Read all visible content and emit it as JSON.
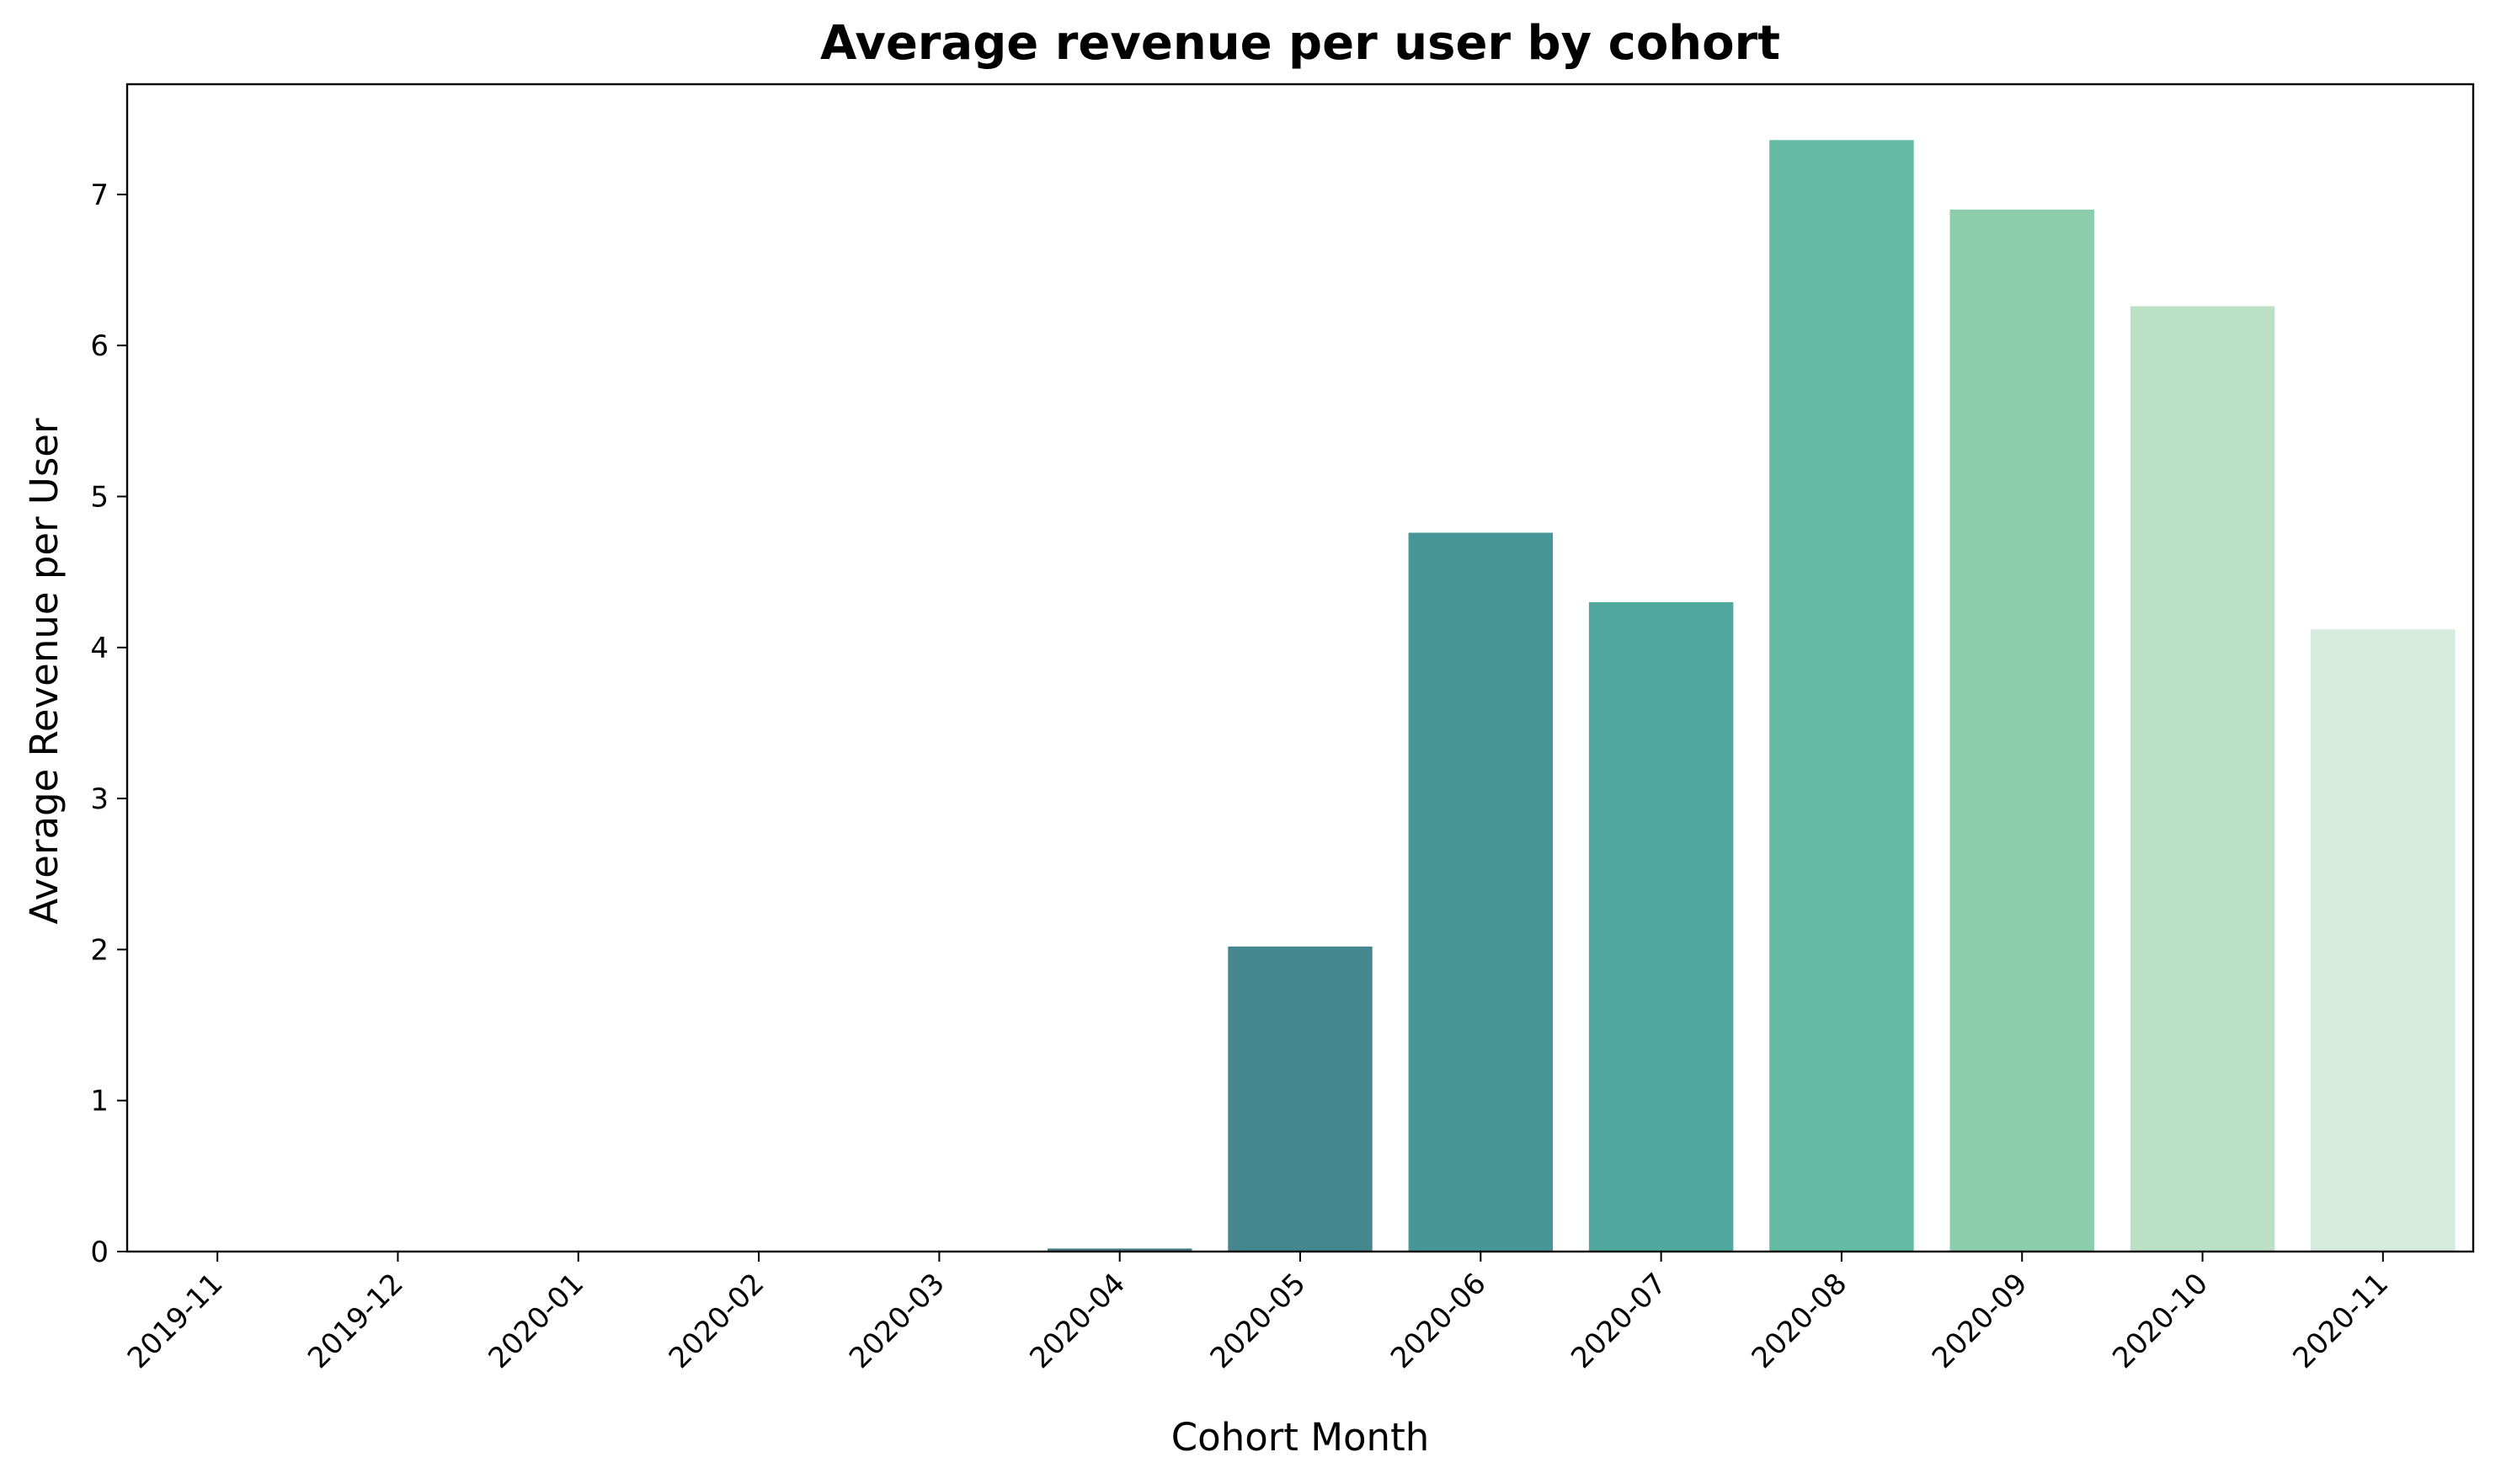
{
  "chart_data": {
    "type": "bar",
    "title": "Average revenue per user by cohort",
    "xlabel": "Cohort Month",
    "ylabel": "Average Revenue per User",
    "categories": [
      "2019-11",
      "2019-12",
      "2020-01",
      "2020-02",
      "2020-03",
      "2020-04",
      "2020-05",
      "2020-06",
      "2020-07",
      "2020-08",
      "2020-09",
      "2020-10",
      "2020-11"
    ],
    "values": [
      0,
      0,
      0,
      0,
      0,
      0.02,
      2.02,
      4.76,
      4.3,
      7.36,
      6.9,
      6.26,
      4.12
    ],
    "colors": [
      "#2f2f56",
      "#343a63",
      "#37476f",
      "#3b5878",
      "#41667f",
      "#447886",
      "#45868f",
      "#479698",
      "#50a7a0",
      "#64bba3",
      "#8ccdac",
      "#bbe0c5",
      "#d5ecdc"
    ],
    "ylim": [
      0,
      7.73
    ],
    "yticks": [
      0,
      1,
      2,
      3,
      4,
      5,
      6,
      7
    ],
    "grid": false,
    "legend": "none"
  }
}
